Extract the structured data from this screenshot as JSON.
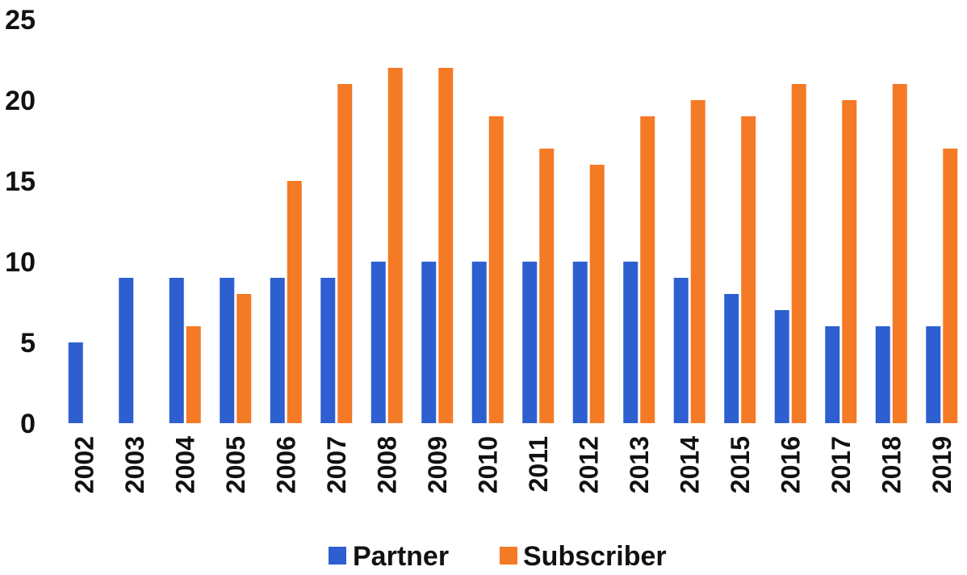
{
  "chart_data": {
    "type": "bar",
    "categories": [
      "2002",
      "2003",
      "2004",
      "2005",
      "2006",
      "2007",
      "2008",
      "2009",
      "2010",
      "2011",
      "2012",
      "2013",
      "2014",
      "2015",
      "2016",
      "2017",
      "2018",
      "2019"
    ],
    "series": [
      {
        "name": "Partner",
        "color": "#2e5fd0",
        "values": [
          5,
          9,
          9,
          9,
          9,
          9,
          10,
          10,
          10,
          10,
          10,
          10,
          9,
          8,
          7,
          6,
          6,
          6
        ]
      },
      {
        "name": "Subscriber",
        "color": "#f47a25",
        "values": [
          0,
          0,
          6,
          8,
          15,
          21,
          22,
          22,
          19,
          17,
          16,
          19,
          20,
          19,
          21,
          20,
          21,
          17
        ]
      }
    ],
    "yticks": [
      "0",
      "5",
      "10",
      "15",
      "20",
      "25"
    ],
    "ylim": [
      0,
      25
    ],
    "title": "",
    "xlabel": "",
    "ylabel": "",
    "grid": false,
    "legend": "bottom"
  }
}
